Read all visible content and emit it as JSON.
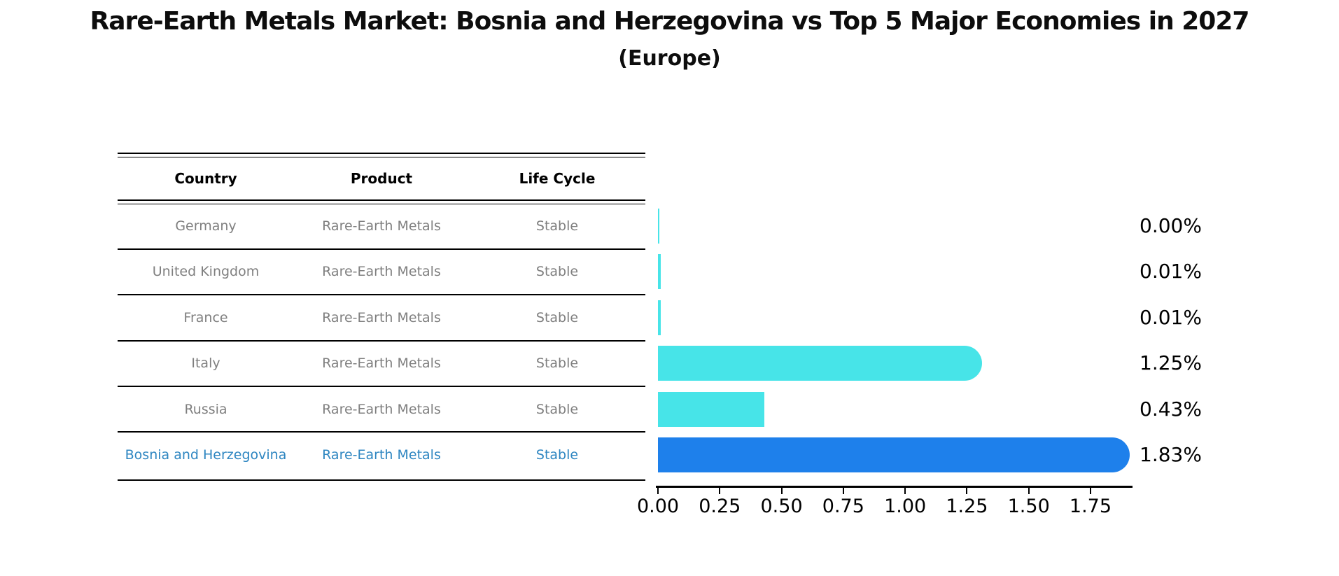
{
  "title": "Rare-Earth Metals Market: Bosnia and Herzegovina vs Top 5 Major Economies in 2027",
  "subtitle": "(Europe)",
  "table": {
    "columns": [
      "Country",
      "Product",
      "Life Cycle"
    ],
    "rows": [
      {
        "country": "Germany",
        "product": "Rare-Earth Metals",
        "life_cycle": "Stable",
        "highlight": false
      },
      {
        "country": "United Kingdom",
        "product": "Rare-Earth Metals",
        "life_cycle": "Stable",
        "highlight": false
      },
      {
        "country": "France",
        "product": "Rare-Earth Metals",
        "life_cycle": "Stable",
        "highlight": false
      },
      {
        "country": "Italy",
        "product": "Rare-Earth Metals",
        "life_cycle": "Stable",
        "highlight": false
      },
      {
        "country": "Russia",
        "product": "Rare-Earth Metals",
        "life_cycle": "Stable",
        "highlight": false
      },
      {
        "country": "Bosnia and Herzegovina",
        "product": "Rare-Earth Metals",
        "life_cycle": "Stable",
        "highlight": true
      }
    ]
  },
  "chart_data": {
    "type": "bar",
    "orientation": "horizontal",
    "categories": [
      "Germany",
      "United Kingdom",
      "France",
      "Italy",
      "Russia",
      "Bosnia and Herzegovina"
    ],
    "values": [
      0.0,
      0.01,
      0.01,
      1.25,
      0.43,
      1.83
    ],
    "value_labels": [
      "0.00%",
      "0.01%",
      "0.01%",
      "1.25%",
      "0.43%",
      "1.83%"
    ],
    "title": "Rare-Earth Metals Market: Bosnia and Herzegovina vs Top 5 Major Economies in 2027 (Europe)",
    "xlabel": "",
    "ylabel": "",
    "xlim": [
      0,
      1.92
    ],
    "xticks": [
      "0.00",
      "0.25",
      "0.50",
      "0.75",
      "1.00",
      "1.25",
      "1.50",
      "1.75"
    ],
    "xtick_values": [
      0.0,
      0.25,
      0.5,
      0.75,
      1.0,
      1.25,
      1.5,
      1.75
    ],
    "grid": false,
    "legend": false
  },
  "colors": {
    "bar": "#47e4e8",
    "highlight_bar": "#1e80eb",
    "highlight_text": "#2e86c1",
    "row_text": "#7f7f7f",
    "axis": "#000000",
    "background": "#ffffff"
  }
}
